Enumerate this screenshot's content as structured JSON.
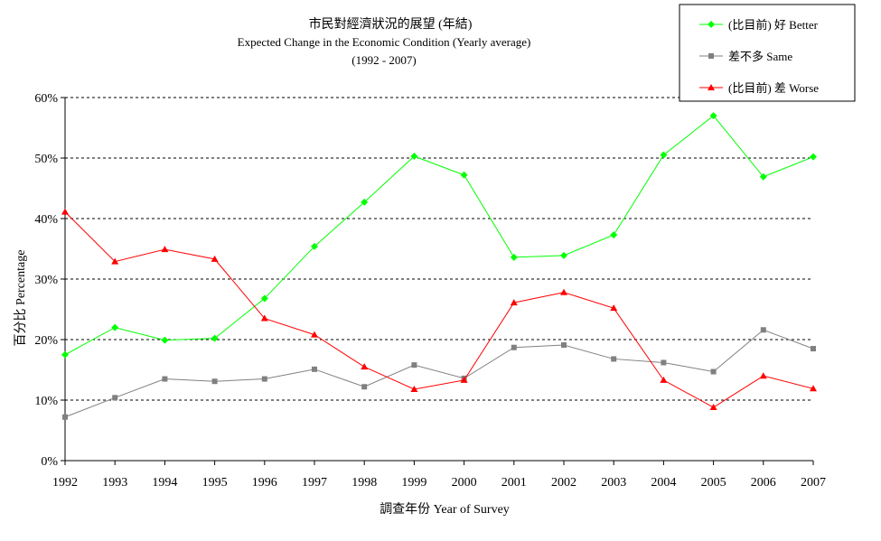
{
  "chart_data": {
    "type": "line",
    "title": "市民對經濟狀況的展望 (年結)",
    "subtitle": "Expected Change in the Economic Condition  (Yearly average)",
    "subtitle2": "(1992 - 2007)",
    "xlabel": "調查年份 Year of Survey",
    "ylabel": "百分比 Percentage",
    "categories": [
      "1992",
      "1993",
      "1994",
      "1995",
      "1996",
      "1997",
      "1998",
      "1999",
      "2000",
      "2001",
      "2002",
      "2003",
      "2004",
      "2005",
      "2006",
      "2007"
    ],
    "ylim": [
      0,
      60
    ],
    "yticks": [
      0,
      10,
      20,
      30,
      40,
      50,
      60
    ],
    "ytick_labels": [
      "0%",
      "10%",
      "20%",
      "30%",
      "40%",
      "50%",
      "60%"
    ],
    "grid": "horizontal dashed",
    "legend_position": "top-right",
    "series": [
      {
        "name": "(比目前) 好 Better",
        "color": "#00ff00",
        "marker": "diamond",
        "values": [
          17.5,
          22.0,
          19.9,
          20.2,
          26.8,
          35.4,
          42.7,
          50.3,
          47.2,
          33.6,
          33.9,
          37.3,
          50.5,
          57.0,
          46.9,
          50.2
        ]
      },
      {
        "name": "差不多 Same",
        "color": "#808080",
        "marker": "square",
        "values": [
          7.2,
          10.4,
          13.5,
          13.1,
          13.5,
          15.1,
          12.2,
          15.8,
          13.6,
          18.7,
          19.1,
          16.8,
          16.2,
          14.7,
          21.6,
          18.5
        ]
      },
      {
        "name": "(比目前) 差 Worse",
        "color": "#ff0000",
        "marker": "triangle",
        "values": [
          41.1,
          32.9,
          34.9,
          33.3,
          23.5,
          20.8,
          15.5,
          11.8,
          13.3,
          26.1,
          27.8,
          25.2,
          13.3,
          8.8,
          14.0,
          11.9
        ]
      }
    ]
  }
}
